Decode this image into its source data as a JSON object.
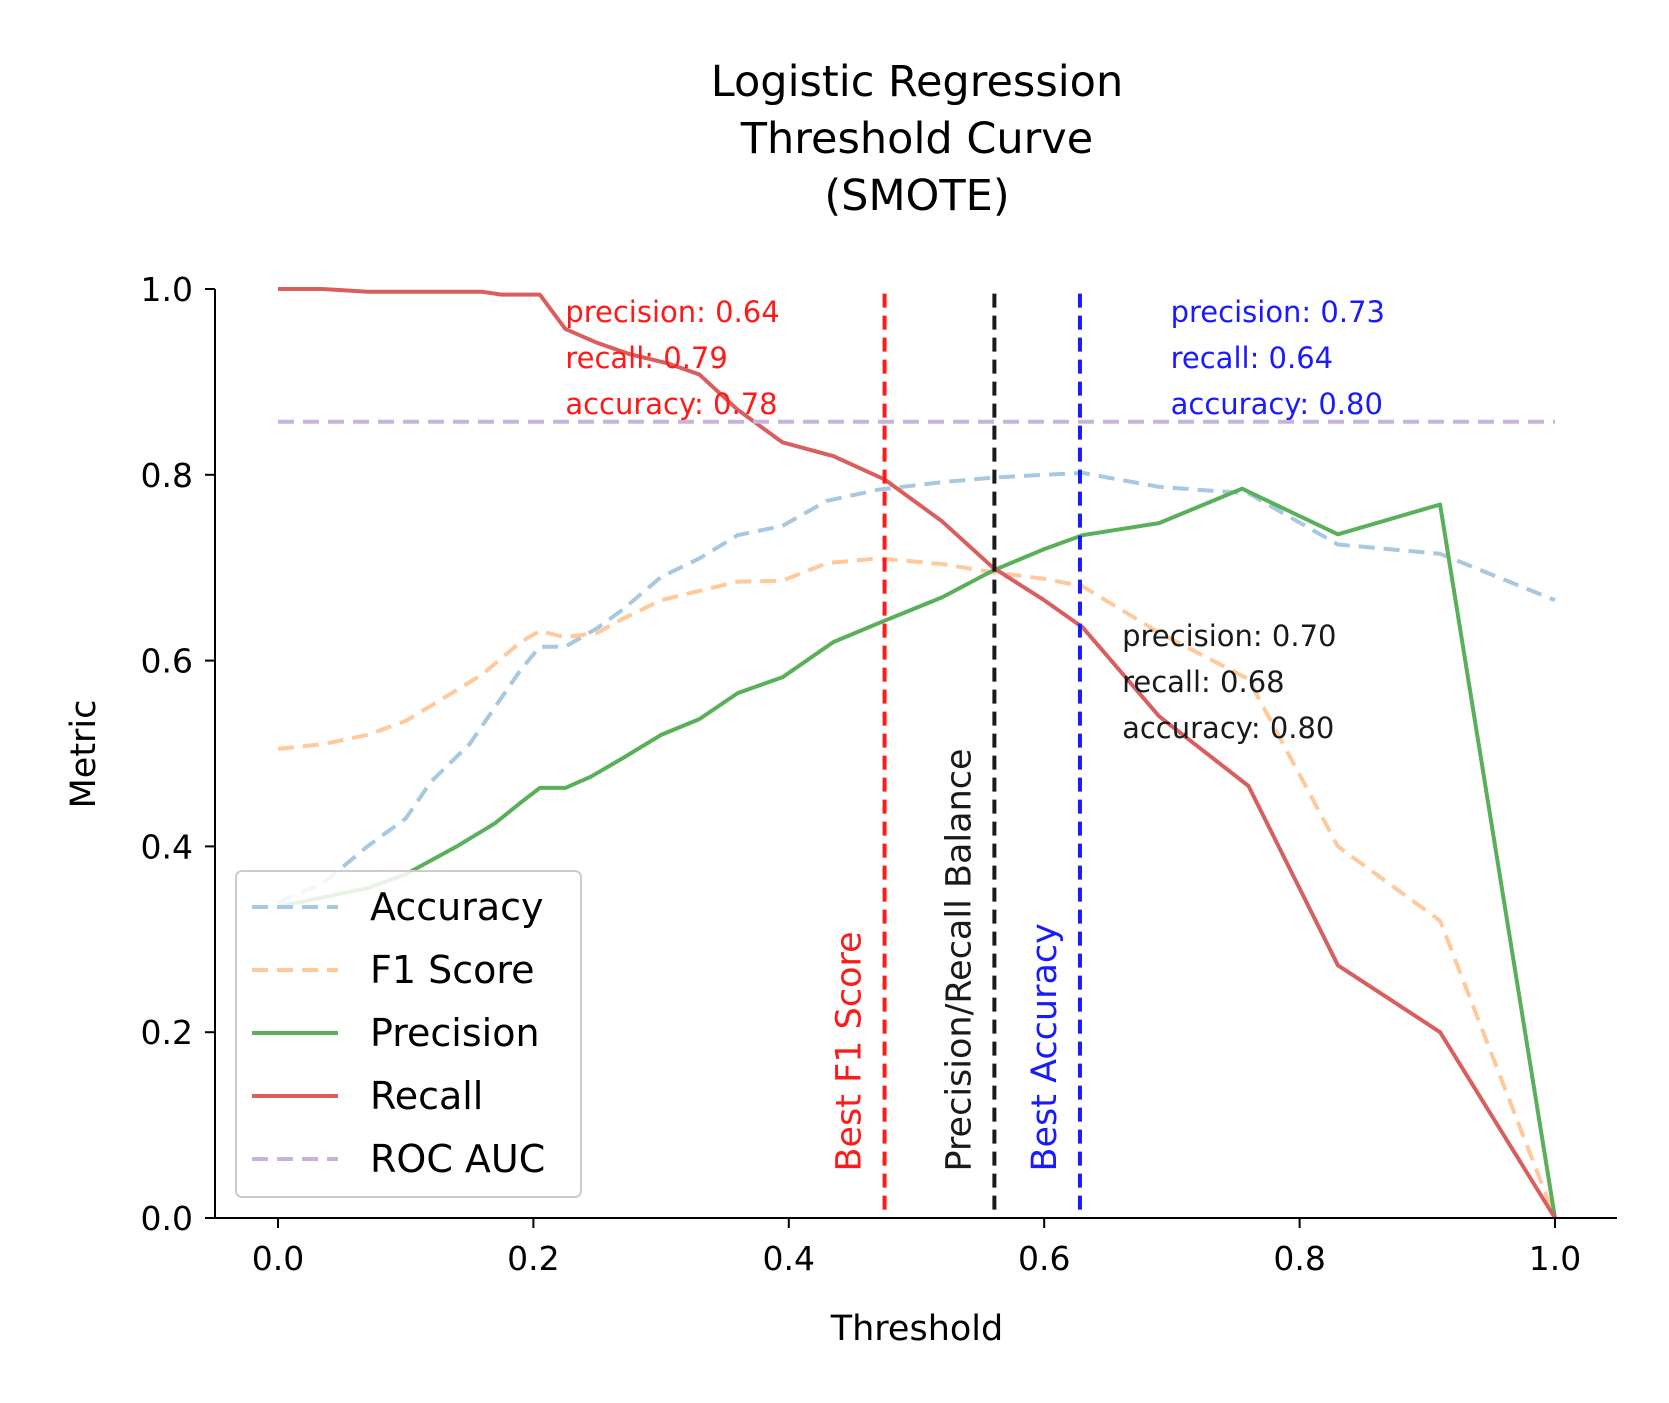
{
  "chart_data": {
    "type": "line",
    "title_lines": [
      "Logistic Regression",
      "Threshold Curve",
      "(SMOTE)"
    ],
    "xlabel": "Threshold",
    "ylabel": "Metric",
    "xlim": [
      -0.05,
      1.05
    ],
    "ylim": [
      0.0,
      1.0
    ],
    "x_ticks": [
      "0.0",
      "0.2",
      "0.4",
      "0.6",
      "0.8",
      "1.0"
    ],
    "y_ticks": [
      "0.0",
      "0.2",
      "0.4",
      "0.6",
      "0.8",
      "1.0"
    ],
    "grid": false,
    "legend_position": "lower-left",
    "series": [
      {
        "name": "Accuracy",
        "color": "#a6c8e0",
        "dash": true,
        "x": [
          0.0,
          0.035,
          0.07,
          0.1,
          0.12,
          0.15,
          0.17,
          0.19,
          0.205,
          0.225,
          0.25,
          0.27,
          0.3,
          0.33,
          0.36,
          0.395,
          0.43,
          0.47,
          0.52,
          0.56,
          0.6,
          0.63,
          0.69,
          0.76,
          0.83,
          0.91,
          1.0
        ],
        "y": [
          0.34,
          0.36,
          0.4,
          0.43,
          0.47,
          0.51,
          0.55,
          0.59,
          0.615,
          0.615,
          0.635,
          0.655,
          0.69,
          0.71,
          0.735,
          0.745,
          0.772,
          0.784,
          0.792,
          0.797,
          0.8,
          0.802,
          0.787,
          0.78,
          0.725,
          0.715,
          0.665
        ]
      },
      {
        "name": "F1 Score",
        "color": "#ffc99c",
        "dash": true,
        "x": [
          0.0,
          0.035,
          0.07,
          0.1,
          0.13,
          0.16,
          0.19,
          0.205,
          0.225,
          0.25,
          0.27,
          0.3,
          0.36,
          0.395,
          0.43,
          0.47,
          0.52,
          0.56,
          0.6,
          0.63,
          0.69,
          0.76,
          0.83,
          0.91,
          1.0
        ],
        "y": [
          0.505,
          0.51,
          0.52,
          0.535,
          0.56,
          0.585,
          0.62,
          0.632,
          0.625,
          0.63,
          0.645,
          0.665,
          0.685,
          0.686,
          0.705,
          0.71,
          0.704,
          0.695,
          0.688,
          0.68,
          0.63,
          0.58,
          0.4,
          0.32,
          0.0
        ]
      },
      {
        "name": "Precision",
        "color": "#5ab05a",
        "dash": false,
        "x": [
          0.0,
          0.035,
          0.07,
          0.1,
          0.14,
          0.17,
          0.19,
          0.205,
          0.225,
          0.245,
          0.27,
          0.3,
          0.33,
          0.36,
          0.395,
          0.435,
          0.475,
          0.52,
          0.56,
          0.6,
          0.63,
          0.69,
          0.755,
          0.83,
          0.91,
          1.0
        ],
        "y": [
          0.335,
          0.345,
          0.355,
          0.37,
          0.4,
          0.425,
          0.447,
          0.463,
          0.463,
          0.475,
          0.495,
          0.52,
          0.537,
          0.565,
          0.582,
          0.62,
          0.643,
          0.668,
          0.697,
          0.72,
          0.735,
          0.748,
          0.785,
          0.736,
          0.768,
          0.0
        ]
      },
      {
        "name": "Recall",
        "color": "#d95f5f",
        "dash": false,
        "x": [
          0.0,
          0.035,
          0.07,
          0.1,
          0.13,
          0.16,
          0.175,
          0.19,
          0.205,
          0.225,
          0.25,
          0.275,
          0.305,
          0.33,
          0.36,
          0.395,
          0.435,
          0.475,
          0.52,
          0.56,
          0.6,
          0.63,
          0.69,
          0.76,
          0.83,
          0.91,
          1.0
        ],
        "y": [
          1.0,
          1.0,
          0.997,
          0.997,
          0.997,
          0.997,
          0.994,
          0.994,
          0.994,
          0.957,
          0.942,
          0.93,
          0.92,
          0.908,
          0.87,
          0.835,
          0.82,
          0.795,
          0.75,
          0.7,
          0.665,
          0.636,
          0.54,
          0.465,
          0.272,
          0.2,
          0.0
        ]
      },
      {
        "name": "ROC AUC",
        "color": "#c7b3dd",
        "dash": true,
        "x": [
          0.0,
          1.0
        ],
        "y": [
          0.857,
          0.857
        ]
      }
    ],
    "vlines": [
      {
        "x": 0.475,
        "color": "#ff1a1a",
        "label": "Best F1 Score"
      },
      {
        "x": 0.561,
        "color": "#1a1a1a",
        "label": "Precision/Recall Balance"
      },
      {
        "x": 0.628,
        "color": "#1a1aff",
        "label": "Best Accuracy"
      }
    ],
    "annotations": [
      {
        "color": "#ff1a1a",
        "x": 0.225,
        "y_top": 0.985,
        "lines": [
          "precision: 0.64",
          "recall: 0.79",
          "accuracy: 0.78"
        ]
      },
      {
        "color": "#1a1aff",
        "x": 0.699,
        "y_top": 0.985,
        "lines": [
          "precision: 0.73",
          "recall: 0.64",
          "accuracy: 0.80"
        ]
      },
      {
        "color": "#1a1a1a",
        "x": 0.661,
        "y_top": 0.636,
        "lines": [
          "precision: 0.70",
          "recall: 0.68",
          "accuracy: 0.80"
        ]
      }
    ]
  }
}
